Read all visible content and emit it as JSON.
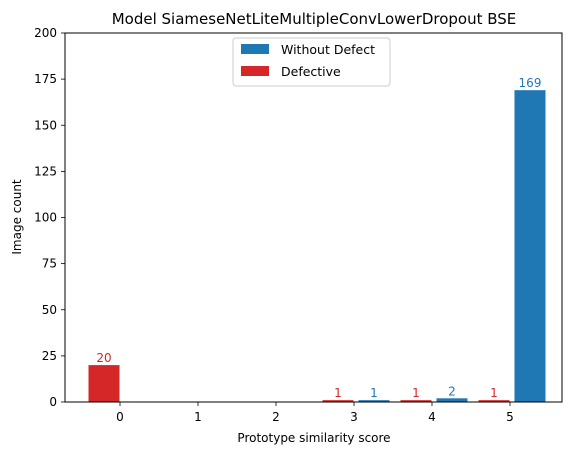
{
  "chart_data": {
    "type": "bar",
    "title": "Model SiameseNetLiteMultipleConvLowerDropout BSE",
    "xlabel": "Prototype similarity score",
    "ylabel": "Image count",
    "categories": [
      "0",
      "1",
      "2",
      "3",
      "4",
      "5"
    ],
    "ylim": [
      0,
      200
    ],
    "yticks": [
      0,
      25,
      50,
      75,
      100,
      125,
      150,
      175,
      200
    ],
    "grid": false,
    "legend_position": "upper center",
    "series": [
      {
        "name": "Without Defect",
        "color": "#1f77b4",
        "values": [
          0,
          0,
          0,
          1,
          2,
          169
        ]
      },
      {
        "name": "Defective",
        "color": "#d62728",
        "values": [
          20,
          0,
          0,
          1,
          1,
          1
        ]
      }
    ]
  }
}
